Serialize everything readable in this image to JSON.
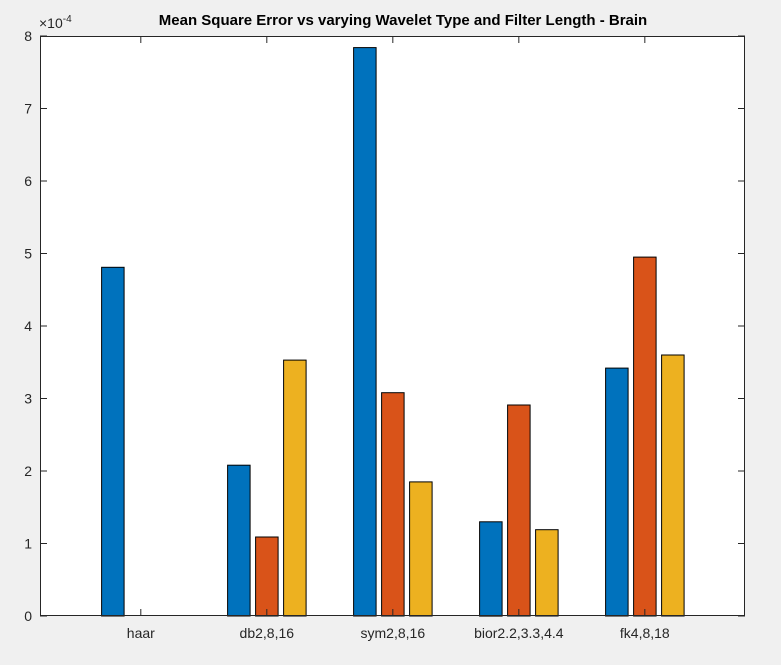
{
  "chart_data": {
    "type": "bar",
    "title": "Mean Square Error vs varying Wavelet Type and Filter Length - Brain",
    "xlabel": "",
    "ylabel": "",
    "exponent_label": "×10",
    "exponent_power": "-4",
    "categories": [
      "haar",
      "db2,8,16",
      "sym2,8,16",
      "bior2.2,3.3,4.4",
      "fk4,8,18"
    ],
    "y_ticks": [
      "0",
      "1",
      "2",
      "3",
      "4",
      "5",
      "6",
      "7",
      "8"
    ],
    "ylim": [
      0,
      8
    ],
    "grid": false,
    "legend": "none",
    "series": [
      {
        "values": [
          4.81,
          2.08,
          7.84,
          1.3,
          3.42
        ],
        "color": "#0072BD"
      },
      {
        "values": [
          null,
          1.09,
          3.08,
          2.91,
          4.95
        ],
        "color": "#D95319"
      },
      {
        "values": [
          null,
          3.53,
          1.85,
          1.19,
          3.6
        ],
        "color": "#EDB120"
      }
    ]
  }
}
